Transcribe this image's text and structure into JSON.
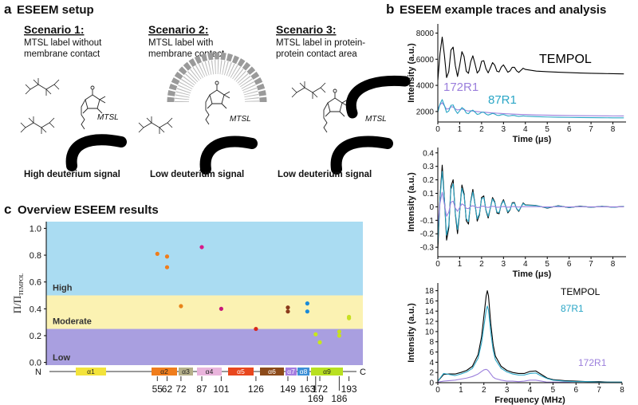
{
  "panel_a": {
    "label": "a",
    "title": "ESEEM setup",
    "scenarios": [
      {
        "title": "Scenario 1:",
        "description": [
          "MTSL label without",
          "membrane contact"
        ],
        "molecule": "MTSL",
        "result": "High deuterium signal"
      },
      {
        "title": "Scenario 2:",
        "description": [
          "MTSL label with",
          "membrane contact"
        ],
        "molecule": "MTSL",
        "result": "Low deuterium signal"
      },
      {
        "title": "Scenario 3:",
        "description": [
          "MTSL label in protein-",
          "protein contact area"
        ],
        "molecule": "MTSL",
        "result": "Low deuterium signal"
      }
    ]
  },
  "panel_b": {
    "label": "b",
    "title": "ESEEM example traces and analysis"
  },
  "panel_c": {
    "label": "c",
    "title": "Overview ESEEM results"
  },
  "chart_data": [
    {
      "type": "line",
      "xlabel": "Time (μs)",
      "ylabel": "Intensity (a.u.)",
      "xlim": [
        0,
        8.6
      ],
      "ylim": [
        1200,
        8700
      ],
      "xticks": [
        0,
        1,
        2,
        3,
        4,
        5,
        6,
        7,
        8
      ],
      "yticks": [
        2000,
        4000,
        6000,
        8000
      ],
      "x": [
        0,
        0.1,
        0.2,
        0.3,
        0.4,
        0.5,
        0.6,
        0.7,
        0.8,
        0.9,
        1.0,
        1.1,
        1.2,
        1.3,
        1.4,
        1.5,
        1.6,
        1.7,
        1.8,
        1.9,
        2.0,
        2.1,
        2.2,
        2.3,
        2.4,
        2.5,
        2.6,
        2.7,
        2.8,
        2.9,
        3.0,
        3.1,
        3.2,
        3.3,
        3.4,
        3.5,
        3.6,
        3.7,
        3.8,
        3.9,
        4.0,
        4.5,
        5,
        5.5,
        6,
        6.5,
        7,
        7.5,
        8,
        8.5
      ],
      "series": [
        {
          "name": "TEMPOL",
          "color": "#000000",
          "values": [
            4380,
            6446,
            7693,
            6320,
            4599,
            5047,
            6698,
            6923,
            5510,
            4681,
            5542,
            6579,
            6198,
            5084,
            4921,
            5797,
            6261,
            5639,
            4939,
            5164,
            5840,
            5886,
            5275,
            4955,
            5331,
            5741,
            5546,
            5080,
            5031,
            5399,
            5567,
            5289,
            5003,
            5110,
            5384,
            5380,
            5117,
            4992,
            5156,
            5313,
            5218,
            5090,
            5046,
            5008,
            4976,
            4949,
            4926,
            4907,
            4890,
            4877
          ]
        },
        {
          "name": "172R1",
          "color": "#9b7fdc",
          "values": [
            2183,
            2523,
            2670,
            2428,
            2183,
            2219,
            2362,
            2346,
            2197,
            2114,
            2154,
            2191,
            2145,
            2068,
            2042,
            2059,
            2032,
            2013,
            1996,
            1979,
            1963,
            1948,
            1933,
            1919,
            1906,
            1894,
            1882,
            1870,
            1860,
            1850,
            1840,
            1830,
            1822,
            1813,
            1806,
            1798,
            1790,
            1783,
            1778,
            1771,
            1765,
            1739,
            1720,
            1704,
            1693,
            1683,
            1676,
            1670,
            1665,
            1662
          ]
        },
        {
          "name": "87R1",
          "color": "#2aa6c6",
          "values": [
            1957,
            2571,
            2913,
            2463,
            1930,
            2037,
            2473,
            2503,
            2094,
            1855,
            2058,
            2297,
            2179,
            1888,
            1833,
            2020,
            2107,
            1950,
            1782,
            1818,
            1945,
            1940,
            1803,
            1729,
            1791,
            1858,
            1810,
            1714,
            1698,
            1753,
            1772,
            1716,
            1663,
            1673,
            1709,
            1700,
            1654,
            1629,
            1648,
            1664,
            1646,
            1605,
            1582,
            1564,
            1550,
            1539,
            1530,
            1524,
            1518,
            1514
          ]
        }
      ]
    },
    {
      "type": "line",
      "xlabel": "Time (μs)",
      "ylabel": "Intensity (a.u.)",
      "xlim": [
        0,
        8.6
      ],
      "ylim": [
        -0.37,
        0.44
      ],
      "xticks": [
        0,
        1,
        2,
        3,
        4,
        5,
        6,
        7,
        8
      ],
      "yticks": [
        -0.3,
        -0.2,
        -0.1,
        0,
        0.1,
        0.2,
        0.3,
        0.4
      ],
      "x": [
        0,
        0.1,
        0.2,
        0.3,
        0.4,
        0.5,
        0.6,
        0.7,
        0.8,
        0.9,
        1.0,
        1.1,
        1.2,
        1.3,
        1.4,
        1.5,
        1.6,
        1.7,
        1.8,
        1.9,
        2.0,
        2.1,
        2.2,
        2.3,
        2.4,
        2.5,
        2.6,
        2.7,
        2.8,
        2.9,
        3.0,
        3.1,
        3.2,
        3.3,
        3.4,
        3.5,
        3.6,
        3.7,
        3.8,
        3.9,
        4.0,
        4.5,
        5,
        5.5,
        6,
        6.5,
        7,
        7.5,
        8,
        8.5
      ],
      "series": [
        {
          "color": "#000000",
          "values": [
            -0.317,
            0.072,
            0.309,
            0.063,
            -0.247,
            -0.157,
            0.153,
            0.201,
            -0.053,
            -0.199,
            -0.035,
            0.162,
            0.097,
            -0.103,
            -0.128,
            0.038,
            0.129,
            0.019,
            -0.106,
            -0.06,
            0.069,
            0.081,
            -0.027,
            -0.083,
            -0.01,
            0.069,
            0.037,
            -0.046,
            -0.051,
            0.019,
            0.053,
            0.005,
            -0.045,
            -0.023,
            0.03,
            0.032,
            -0.014,
            -0.034,
            -0.002,
            0.029,
            0.014,
            0.01,
            -0.01,
            0.008,
            -0.006,
            0.005,
            -0.004,
            0.004,
            -0.003,
            0.003
          ]
        },
        {
          "color": "#2aa6c6",
          "values": [
            -0.269,
            0.061,
            0.263,
            0.054,
            -0.21,
            -0.133,
            0.13,
            0.171,
            -0.045,
            -0.169,
            -0.03,
            0.138,
            0.082,
            -0.088,
            -0.109,
            0.032,
            0.11,
            0.016,
            -0.09,
            -0.051,
            0.059,
            0.069,
            -0.023,
            -0.071,
            -0.009,
            0.059,
            0.031,
            -0.039,
            -0.043,
            0.016,
            0.045,
            0.004,
            -0.038,
            -0.02,
            0.026,
            0.027,
            -0.012,
            -0.029,
            -0.002,
            0.025,
            0.012,
            0.009,
            -0.008,
            0.007,
            -0.005,
            0.004,
            -0.003,
            0.003,
            -0.003,
            0.002
          ]
        },
        {
          "color": "#9b7fdc",
          "values": [
            -0.136,
            0.028,
            0.108,
            0.02,
            -0.07,
            -0.04,
            0.035,
            0.042,
            -0.01,
            -0.033,
            -0.005,
            0.022,
            0.012,
            -0.011,
            -0.013,
            0.003,
            0.008,
            0.002,
            -0.006,
            -0.004,
            0.004,
            0.005,
            -0.002,
            -0.005,
            0,
            0.004,
            0.002,
            -0.003,
            -0.003,
            0.001,
            0.003,
            0,
            -0.003,
            -0.001,
            0.002,
            0.002,
            -0.001,
            -0.002,
            0,
            0.002,
            0.001,
            0.001,
            -0.001,
            0.001,
            -0.001,
            0.001,
            0,
            0,
            0,
            0
          ]
        }
      ]
    },
    {
      "type": "line",
      "xlabel": "Frequency (MHz)",
      "ylabel": "Intensity (a.u.)",
      "xlim": [
        0,
        8
      ],
      "ylim": [
        0,
        19.5
      ],
      "xticks": [
        0,
        1,
        2,
        3,
        4,
        5,
        6,
        7,
        8
      ],
      "yticks": [
        0,
        2,
        4,
        6,
        8,
        10,
        12,
        14,
        16,
        18
      ],
      "x": [
        0,
        0.25,
        0.5,
        0.75,
        1,
        1.25,
        1.5,
        1.75,
        1.9,
        2.0,
        2.1,
        2.15,
        2.2,
        2.3,
        2.4,
        2.5,
        2.75,
        3,
        3.25,
        3.5,
        3.75,
        4,
        4.25,
        4.5,
        4.75,
        5,
        5.5,
        6,
        6.5,
        7,
        7.5,
        8
      ],
      "series": [
        {
          "name": "TEMPOL",
          "color": "#000000",
          "values": [
            0.3,
            1.6,
            1.7,
            1.7,
            2.0,
            2.4,
            3.2,
            5.5,
            9.0,
            13.0,
            17.0,
            18.0,
            17.0,
            11.5,
            7.5,
            5.2,
            3.2,
            2.4,
            2.0,
            1.8,
            1.8,
            2.2,
            2.3,
            1.6,
            0.9,
            0.6,
            0.4,
            0.3,
            0.2,
            0.2,
            0.1,
            0.1
          ]
        },
        {
          "name": "87R1",
          "color": "#2aa6c6",
          "values": [
            0.3,
            1.8,
            1.6,
            1.4,
            1.7,
            2.1,
            2.8,
            4.8,
            7.8,
            11.0,
            14.2,
            15.0,
            14.2,
            9.8,
            6.4,
            4.5,
            2.8,
            2.1,
            1.7,
            1.5,
            1.5,
            1.8,
            1.9,
            1.3,
            0.8,
            0.5,
            0.3,
            0.2,
            0.2,
            0.1,
            0.1,
            0.1
          ]
        },
        {
          "name": "172R1",
          "color": "#9b7fdc",
          "values": [
            0.1,
            0.3,
            0.4,
            0.5,
            0.7,
            0.9,
            1.2,
            1.7,
            2.2,
            2.5,
            2.6,
            2.5,
            2.3,
            1.7,
            1.1,
            0.8,
            0.5,
            0.3,
            0.3,
            0.2,
            0.3,
            0.5,
            0.5,
            0.3,
            0.1,
            0.1,
            0.1,
            0,
            0,
            0,
            0,
            0
          ]
        }
      ]
    },
    {
      "type": "scatter",
      "ylabel": "Π/Π",
      "ylabel_sub": "TEMPOL",
      "xlim": [
        -25,
        203
      ],
      "ylim": [
        -0.02,
        1.05
      ],
      "yticks": [
        {
          "value": 0,
          "label": "0.0"
        },
        0.2,
        0.4,
        0.6,
        0.8,
        {
          "value": 1,
          "label": "1.0"
        }
      ],
      "xticks": [
        55,
        62,
        72,
        87,
        101,
        126,
        149,
        163,
        169,
        172,
        186,
        193
      ],
      "bands": [
        {
          "label": "High",
          "from": 0.5,
          "to": 1.05,
          "color": "#aadcf2"
        },
        {
          "label": "Moderate",
          "from": 0.25,
          "to": 0.5,
          "color": "#fbf2b2"
        },
        {
          "label": "Low",
          "from": -0.02,
          "to": 0.25,
          "color": "#a99fe0"
        }
      ],
      "x": [
        55,
        62,
        62,
        72,
        87,
        101,
        126,
        149,
        149,
        163,
        163,
        169,
        172,
        186,
        186,
        193,
        193
      ],
      "values": [
        0.81,
        0.79,
        0.71,
        0.42,
        0.86,
        0.4,
        0.25,
        0.41,
        0.38,
        0.44,
        0.38,
        0.21,
        0.15,
        0.23,
        0.2,
        0.34,
        0.33
      ],
      "colors": [
        "#ef7d1c",
        "#ef7d1c",
        "#ef7d1c",
        "#e8841a",
        "#d81a8a",
        "#c8187a",
        "#d8281a",
        "#8a3a1a",
        "#8a3a1a",
        "#1a8ad8",
        "#1a8ad8",
        "#c8e81a",
        "#c8e81a",
        "#c8e020",
        "#c8e020",
        "#c8e020",
        "#c8e020"
      ],
      "x_start": "N",
      "x_end": "C",
      "helices": [
        {
          "label": "α1",
          "color": "#f3e33b"
        },
        {
          "label": "α2",
          "color": "#f07d1c"
        },
        {
          "label": "α3",
          "color": "#b5b08a"
        },
        {
          "label": "α4",
          "color": "#e9b4dc"
        },
        {
          "label": "α5",
          "color": "#e8471e"
        },
        {
          "label": "α6",
          "color": "#8c4a1a"
        },
        {
          "label": "α7",
          "color": "#a57de0"
        },
        {
          "label": "α8",
          "color": "#3c8fd6"
        },
        {
          "label": "α9",
          "color": "#b8e021"
        }
      ]
    }
  ]
}
